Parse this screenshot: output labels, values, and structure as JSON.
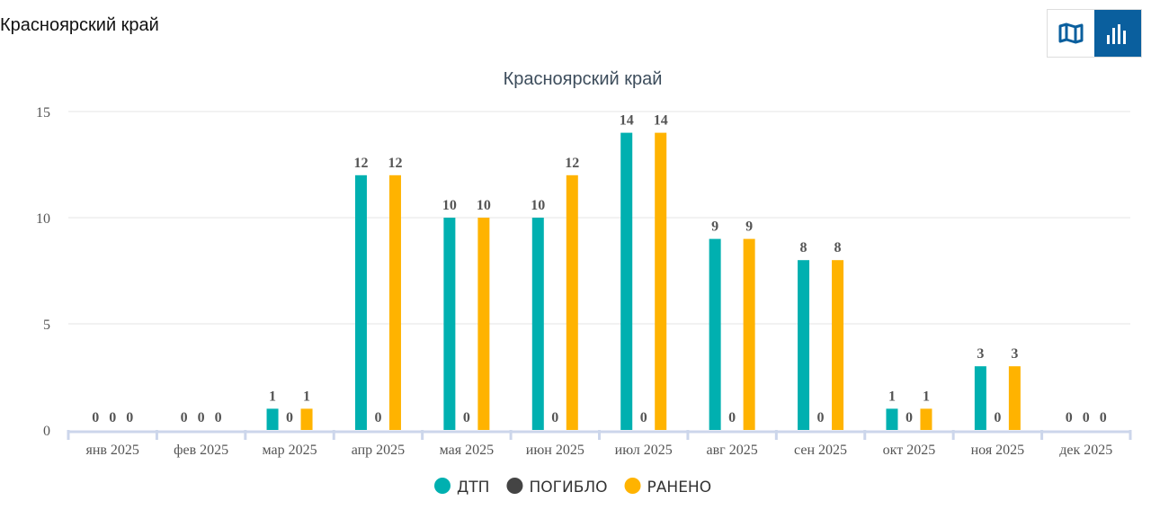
{
  "header": {
    "title": "Красноярский край"
  },
  "view_toggle": [
    {
      "icon": "map-icon",
      "active": false
    },
    {
      "icon": "bar-chart-icon",
      "active": true
    }
  ],
  "colors": {
    "dtp": "#00b0b0",
    "killed": "#444444",
    "injured": "#ffb300",
    "accent": "#0a5f9e"
  },
  "chart_data": {
    "type": "bar",
    "title": "Красноярский край",
    "categories": [
      "янв 2025",
      "фев 2025",
      "мар 2025",
      "апр 2025",
      "мая 2025",
      "июн 2025",
      "июл 2025",
      "авг 2025",
      "сен 2025",
      "окт 2025",
      "ноя 2025",
      "дек 2025"
    ],
    "series": [
      {
        "name": "ДТП",
        "color": "#00b0b0",
        "values": [
          0,
          0,
          1,
          12,
          10,
          10,
          14,
          9,
          8,
          1,
          3,
          0
        ]
      },
      {
        "name": "ПОГИБЛО",
        "color": "#444444",
        "values": [
          0,
          0,
          0,
          0,
          0,
          0,
          0,
          0,
          0,
          0,
          0,
          0
        ]
      },
      {
        "name": "РАНЕНО",
        "color": "#ffb300",
        "values": [
          0,
          0,
          1,
          12,
          10,
          12,
          14,
          9,
          8,
          1,
          3,
          0
        ]
      }
    ],
    "yticks": [
      0,
      5,
      10,
      15
    ],
    "ylim": [
      0,
      15
    ],
    "grid": true,
    "legend": "bottom"
  }
}
